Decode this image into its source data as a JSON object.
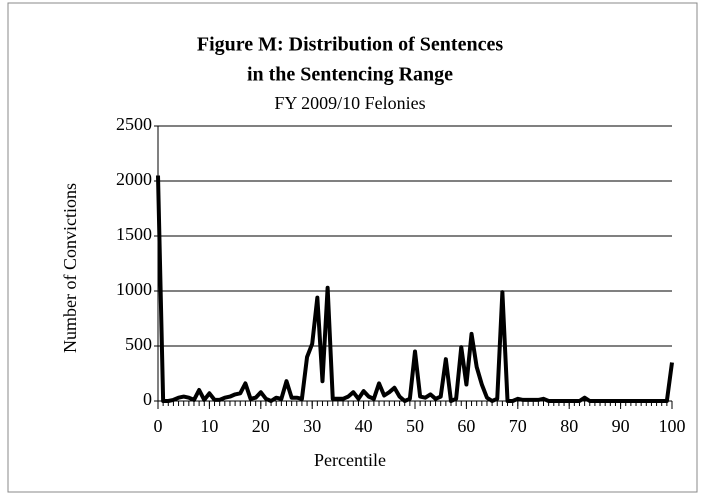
{
  "chart_data": {
    "type": "line",
    "title": [
      "Figure M: Distribution of Sentences",
      "in the Sentencing Range"
    ],
    "subtitle": "FY 2009/10 Felonies",
    "x_label": "Percentile",
    "y_label": "Number of Convictions",
    "x": [
      0,
      1,
      2,
      3,
      4,
      5,
      6,
      7,
      8,
      9,
      10,
      11,
      12,
      13,
      14,
      15,
      16,
      17,
      18,
      19,
      20,
      21,
      22,
      23,
      24,
      25,
      26,
      27,
      28,
      29,
      30,
      31,
      32,
      33,
      34,
      35,
      36,
      37,
      38,
      39,
      40,
      41,
      42,
      43,
      44,
      45,
      46,
      47,
      48,
      49,
      50,
      51,
      52,
      53,
      54,
      55,
      56,
      57,
      58,
      59,
      60,
      61,
      62,
      63,
      64,
      65,
      66,
      67,
      68,
      69,
      70,
      71,
      72,
      73,
      74,
      75,
      76,
      77,
      78,
      79,
      80,
      81,
      82,
      83,
      84,
      85,
      86,
      87,
      88,
      89,
      90,
      91,
      92,
      93,
      94,
      95,
      96,
      97,
      98,
      99,
      100
    ],
    "series": [
      {
        "name": "Convictions",
        "color": "#000000",
        "values": [
          2050,
          0,
          0,
          10,
          30,
          40,
          30,
          10,
          100,
          10,
          70,
          10,
          10,
          30,
          40,
          60,
          70,
          160,
          20,
          30,
          80,
          20,
          0,
          30,
          20,
          180,
          30,
          30,
          20,
          400,
          520,
          940,
          180,
          1030,
          20,
          20,
          20,
          40,
          80,
          20,
          90,
          40,
          20,
          160,
          50,
          80,
          120,
          40,
          0,
          20,
          450,
          40,
          30,
          60,
          20,
          40,
          380,
          0,
          20,
          490,
          150,
          610,
          310,
          150,
          30,
          0,
          20,
          990,
          0,
          0,
          20,
          10,
          10,
          10,
          10,
          20,
          0,
          0,
          0,
          0,
          0,
          0,
          0,
          30,
          0,
          0,
          0,
          0,
          0,
          0,
          0,
          0,
          0,
          0,
          0,
          0,
          0,
          0,
          0,
          0,
          350
        ]
      }
    ],
    "xlim": [
      0,
      100
    ],
    "xticks": [
      0,
      10,
      20,
      30,
      40,
      50,
      60,
      70,
      80,
      90,
      100
    ],
    "ylim": [
      0,
      2500
    ],
    "yticks": [
      0,
      500,
      1000,
      1500,
      2000,
      2500
    ],
    "grid": true
  }
}
